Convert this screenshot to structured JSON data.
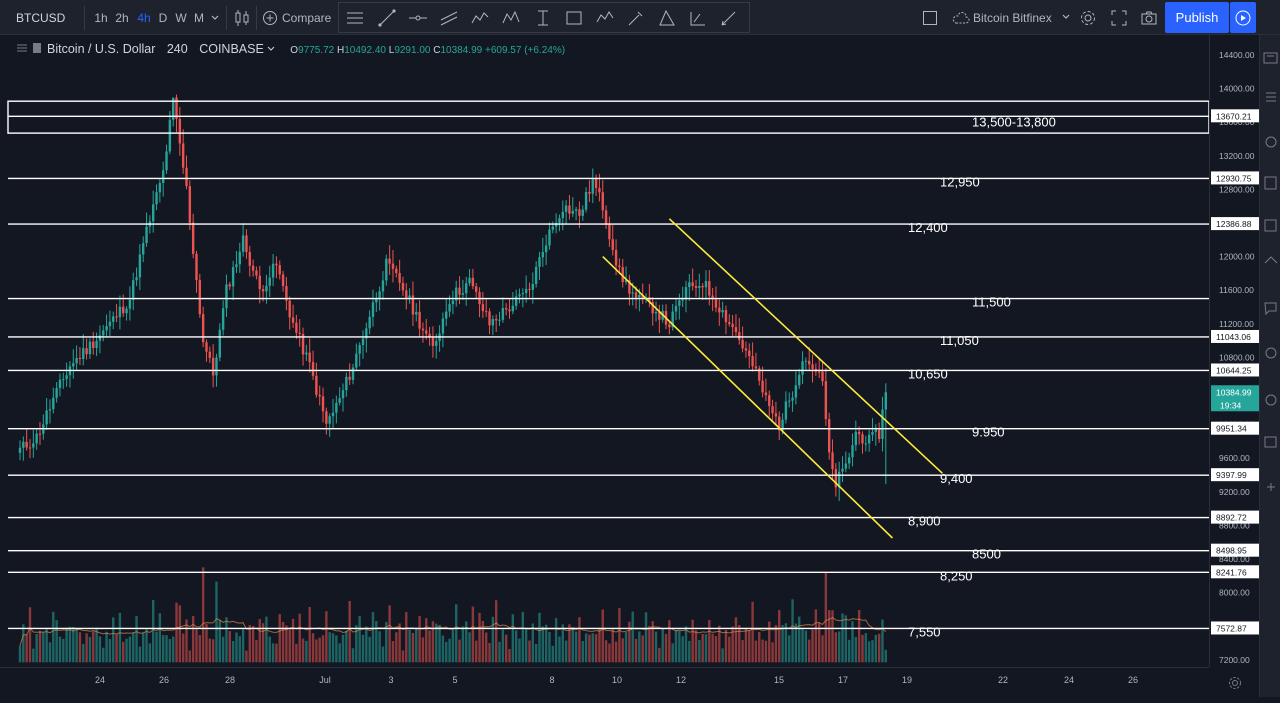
{
  "header": {
    "symbol": "BTCUSD",
    "timeframes": [
      {
        "label": "1h",
        "active": false
      },
      {
        "label": "2h",
        "active": false
      },
      {
        "label": "4h",
        "active": true
      },
      {
        "label": "D",
        "active": false
      },
      {
        "label": "W",
        "active": false
      },
      {
        "label": "M",
        "active": false
      }
    ],
    "compare_label": "Compare",
    "exchange_selector": "Bitcoin Bitfinex",
    "publish_label": "Publish"
  },
  "legend": {
    "title": "Bitcoin / U.S. Dollar",
    "interval": "240",
    "exchange": "COINBASE",
    "open_label": "O",
    "open": "9775.72",
    "high_label": "H",
    "high": "10492.40",
    "low_label": "L",
    "low": "9291.00",
    "close_label": "C",
    "close": "10384.99",
    "change": "+609.57 (+6.24%)"
  },
  "price_axis": {
    "ticks": [
      "14400.00",
      "14000.00",
      "13600.00",
      "13200.00",
      "12800.00",
      "12400.00",
      "12000.00",
      "11600.00",
      "11200.00",
      "10800.00",
      "10400.00",
      "10000.00",
      "9600.00",
      "9200.00",
      "8800.00",
      "8400.00",
      "8000.00",
      "7600.00",
      "7200.00"
    ],
    "current_price": "10384.99",
    "countdown": "19:34"
  },
  "time_axis": {
    "ticks": [
      "24",
      "26",
      "28",
      "Jul",
      "3",
      "5",
      "8",
      "10",
      "12",
      "15",
      "17",
      "19",
      "22",
      "24",
      "26"
    ]
  },
  "levels": [
    {
      "price": 13670.21,
      "axis_label": "13670.21",
      "annotation": "13,500-13,800"
    },
    {
      "price": 12930.75,
      "axis_label": "12930.75",
      "annotation": "12,950"
    },
    {
      "price": 12386.88,
      "axis_label": "12386.88",
      "annotation": "12,400"
    },
    {
      "price": 11500,
      "axis_label": "",
      "annotation": "11,500"
    },
    {
      "price": 11043.06,
      "axis_label": "11043.06",
      "annotation": "11,050"
    },
    {
      "price": 10644.25,
      "axis_label": "10644.25",
      "annotation": "10,650"
    },
    {
      "price": 9951.34,
      "axis_label": "9951.34",
      "annotation": "9.950"
    },
    {
      "price": 9397.99,
      "axis_label": "9397.99",
      "annotation": "9,400"
    },
    {
      "price": 8892.72,
      "axis_label": "8892.72",
      "annotation": "8,900"
    },
    {
      "price": 8498.95,
      "axis_label": "8498.95",
      "annotation": "8500"
    },
    {
      "price": 8241.76,
      "axis_label": "8241.76",
      "annotation": "8,250"
    },
    {
      "price": 7572.87,
      "axis_label": "7572.87",
      "annotation": "7,550"
    }
  ],
  "colors": {
    "up": "#26a69a",
    "down": "#ef5350",
    "channel": "#ffeb3b",
    "level": "#ffffff",
    "accent": "#2962ff",
    "background": "#131722"
  },
  "icons": {
    "timeframe_dropdown": "chevron-down-icon",
    "chart_style": "candles-icon",
    "compare": "plus-circle-icon",
    "settings": "gear-icon",
    "fullscreen": "fullscreen-icon",
    "snapshot": "camera-icon",
    "replay": "play-icon"
  },
  "chart_data": {
    "type": "candlestick",
    "title": "Bitcoin / U.S. Dollar",
    "x_labels": [
      "24",
      "26",
      "28",
      "Jul",
      "3",
      "5",
      "8",
      "10",
      "12",
      "15",
      "17",
      "19",
      "22",
      "24",
      "26"
    ],
    "ylim": [
      7100,
      14600
    ],
    "price_points": [
      [
        0,
        9700
      ],
      [
        5,
        9850
      ],
      [
        10,
        10300
      ],
      [
        15,
        10700
      ],
      [
        20,
        10900
      ],
      [
        27,
        11200
      ],
      [
        33,
        11500
      ],
      [
        38,
        12300
      ],
      [
        43,
        13000
      ],
      [
        46,
        13850
      ],
      [
        50,
        12800
      ],
      [
        55,
        11000
      ],
      [
        58,
        10600
      ],
      [
        62,
        11600
      ],
      [
        67,
        12200
      ],
      [
        72,
        11600
      ],
      [
        77,
        11900
      ],
      [
        82,
        11200
      ],
      [
        87,
        10700
      ],
      [
        92,
        10000
      ],
      [
        96,
        10300
      ],
      [
        100,
        10700
      ],
      [
        105,
        11300
      ],
      [
        110,
        11900
      ],
      [
        114,
        11700
      ],
      [
        119,
        11300
      ],
      [
        124,
        10900
      ],
      [
        129,
        11500
      ],
      [
        135,
        11700
      ],
      [
        141,
        11200
      ],
      [
        147,
        11400
      ],
      [
        153,
        11600
      ],
      [
        158,
        12200
      ],
      [
        163,
        12600
      ],
      [
        168,
        12500
      ],
      [
        172,
        12900
      ],
      [
        175,
        12600
      ],
      [
        180,
        11800
      ],
      [
        185,
        11500
      ],
      [
        190,
        11400
      ],
      [
        195,
        11200
      ],
      [
        200,
        11600
      ],
      [
        205,
        11700
      ],
      [
        210,
        11400
      ],
      [
        215,
        11100
      ],
      [
        220,
        10700
      ],
      [
        225,
        10200
      ],
      [
        228,
        10000
      ],
      [
        232,
        10400
      ],
      [
        235,
        10800
      ],
      [
        238,
        10700
      ],
      [
        241,
        10500
      ],
      [
        243,
        9600
      ],
      [
        245,
        9300
      ],
      [
        248,
        9500
      ],
      [
        251,
        9900
      ],
      [
        255,
        9800
      ],
      [
        258,
        9900
      ],
      [
        260,
        10384.99
      ]
    ],
    "volume_pattern": [
      0.25,
      0.4,
      0.3,
      0.55,
      0.2,
      0.35,
      0.45,
      0.3,
      0.6,
      0.35,
      0.5,
      0.4,
      0.3,
      0.25,
      0.45,
      0.55,
      0.35,
      0.3,
      0.4,
      0.2,
      0.5,
      0.3,
      0.35,
      0.6,
      0.45,
      0.25,
      0.4,
      0.3,
      0.55,
      0.35,
      0.45,
      0.3
    ],
    "volume_spikes": [
      [
        55,
        1.0
      ],
      [
        59,
        0.85
      ],
      [
        48,
        0.6
      ],
      [
        165,
        0.4
      ],
      [
        228,
        0.55
      ],
      [
        242,
        0.95
      ],
      [
        243,
        0.55
      ],
      [
        259,
        0.45
      ]
    ],
    "channel_lines": [
      {
        "from": [
          175,
          12000
        ],
        "to": [
          262,
          8650
        ]
      },
      {
        "from": [
          195,
          12450
        ],
        "to": [
          277,
          9420
        ]
      }
    ]
  }
}
